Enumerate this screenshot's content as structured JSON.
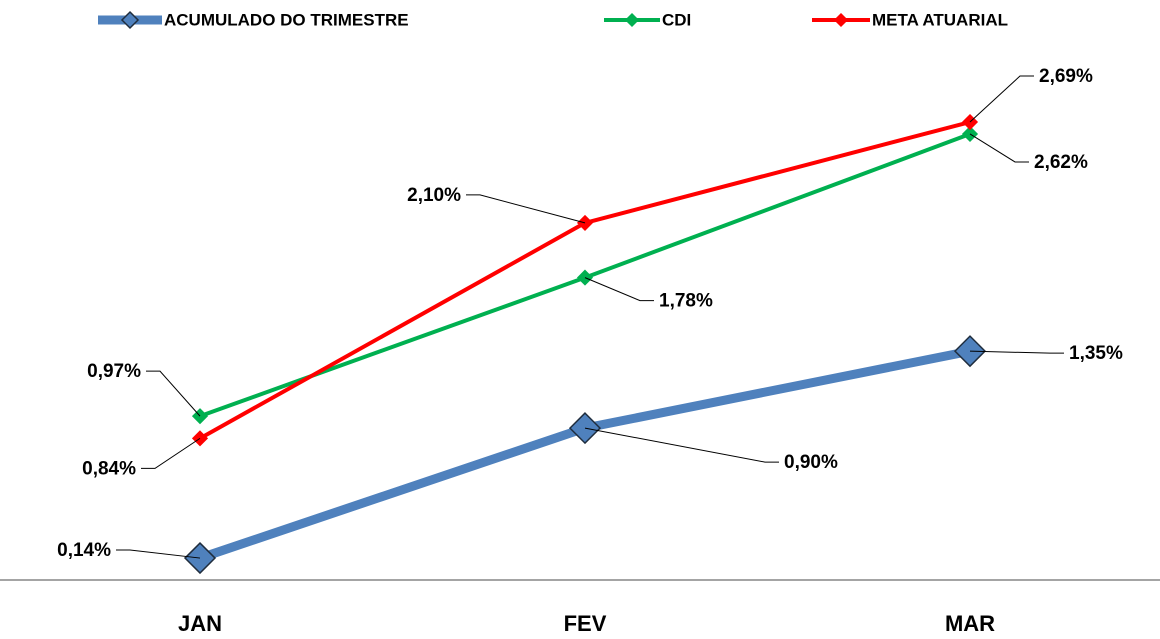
{
  "chart_data": {
    "type": "line",
    "categories": [
      "JAN",
      "FEV",
      "MAR"
    ],
    "ylim": [
      0,
      3
    ],
    "series": [
      {
        "name": "ACUMULADO DO TRIMESTRE",
        "color": "#4f81bd",
        "values": [
          0.14,
          0.9,
          1.35
        ],
        "value_labels": [
          "0,14%",
          "0,90%",
          "1,35%"
        ]
      },
      {
        "name": "CDI",
        "color": "#00b050",
        "values": [
          0.97,
          1.78,
          2.62
        ],
        "value_labels": [
          "0,97%",
          "1,78%",
          "2,62%"
        ]
      },
      {
        "name": "META ATUARIAL",
        "color": "#ff0000",
        "values": [
          0.84,
          2.1,
          2.69
        ],
        "value_labels": [
          "0,84%",
          "2,10%",
          "2,69%"
        ]
      }
    ]
  }
}
